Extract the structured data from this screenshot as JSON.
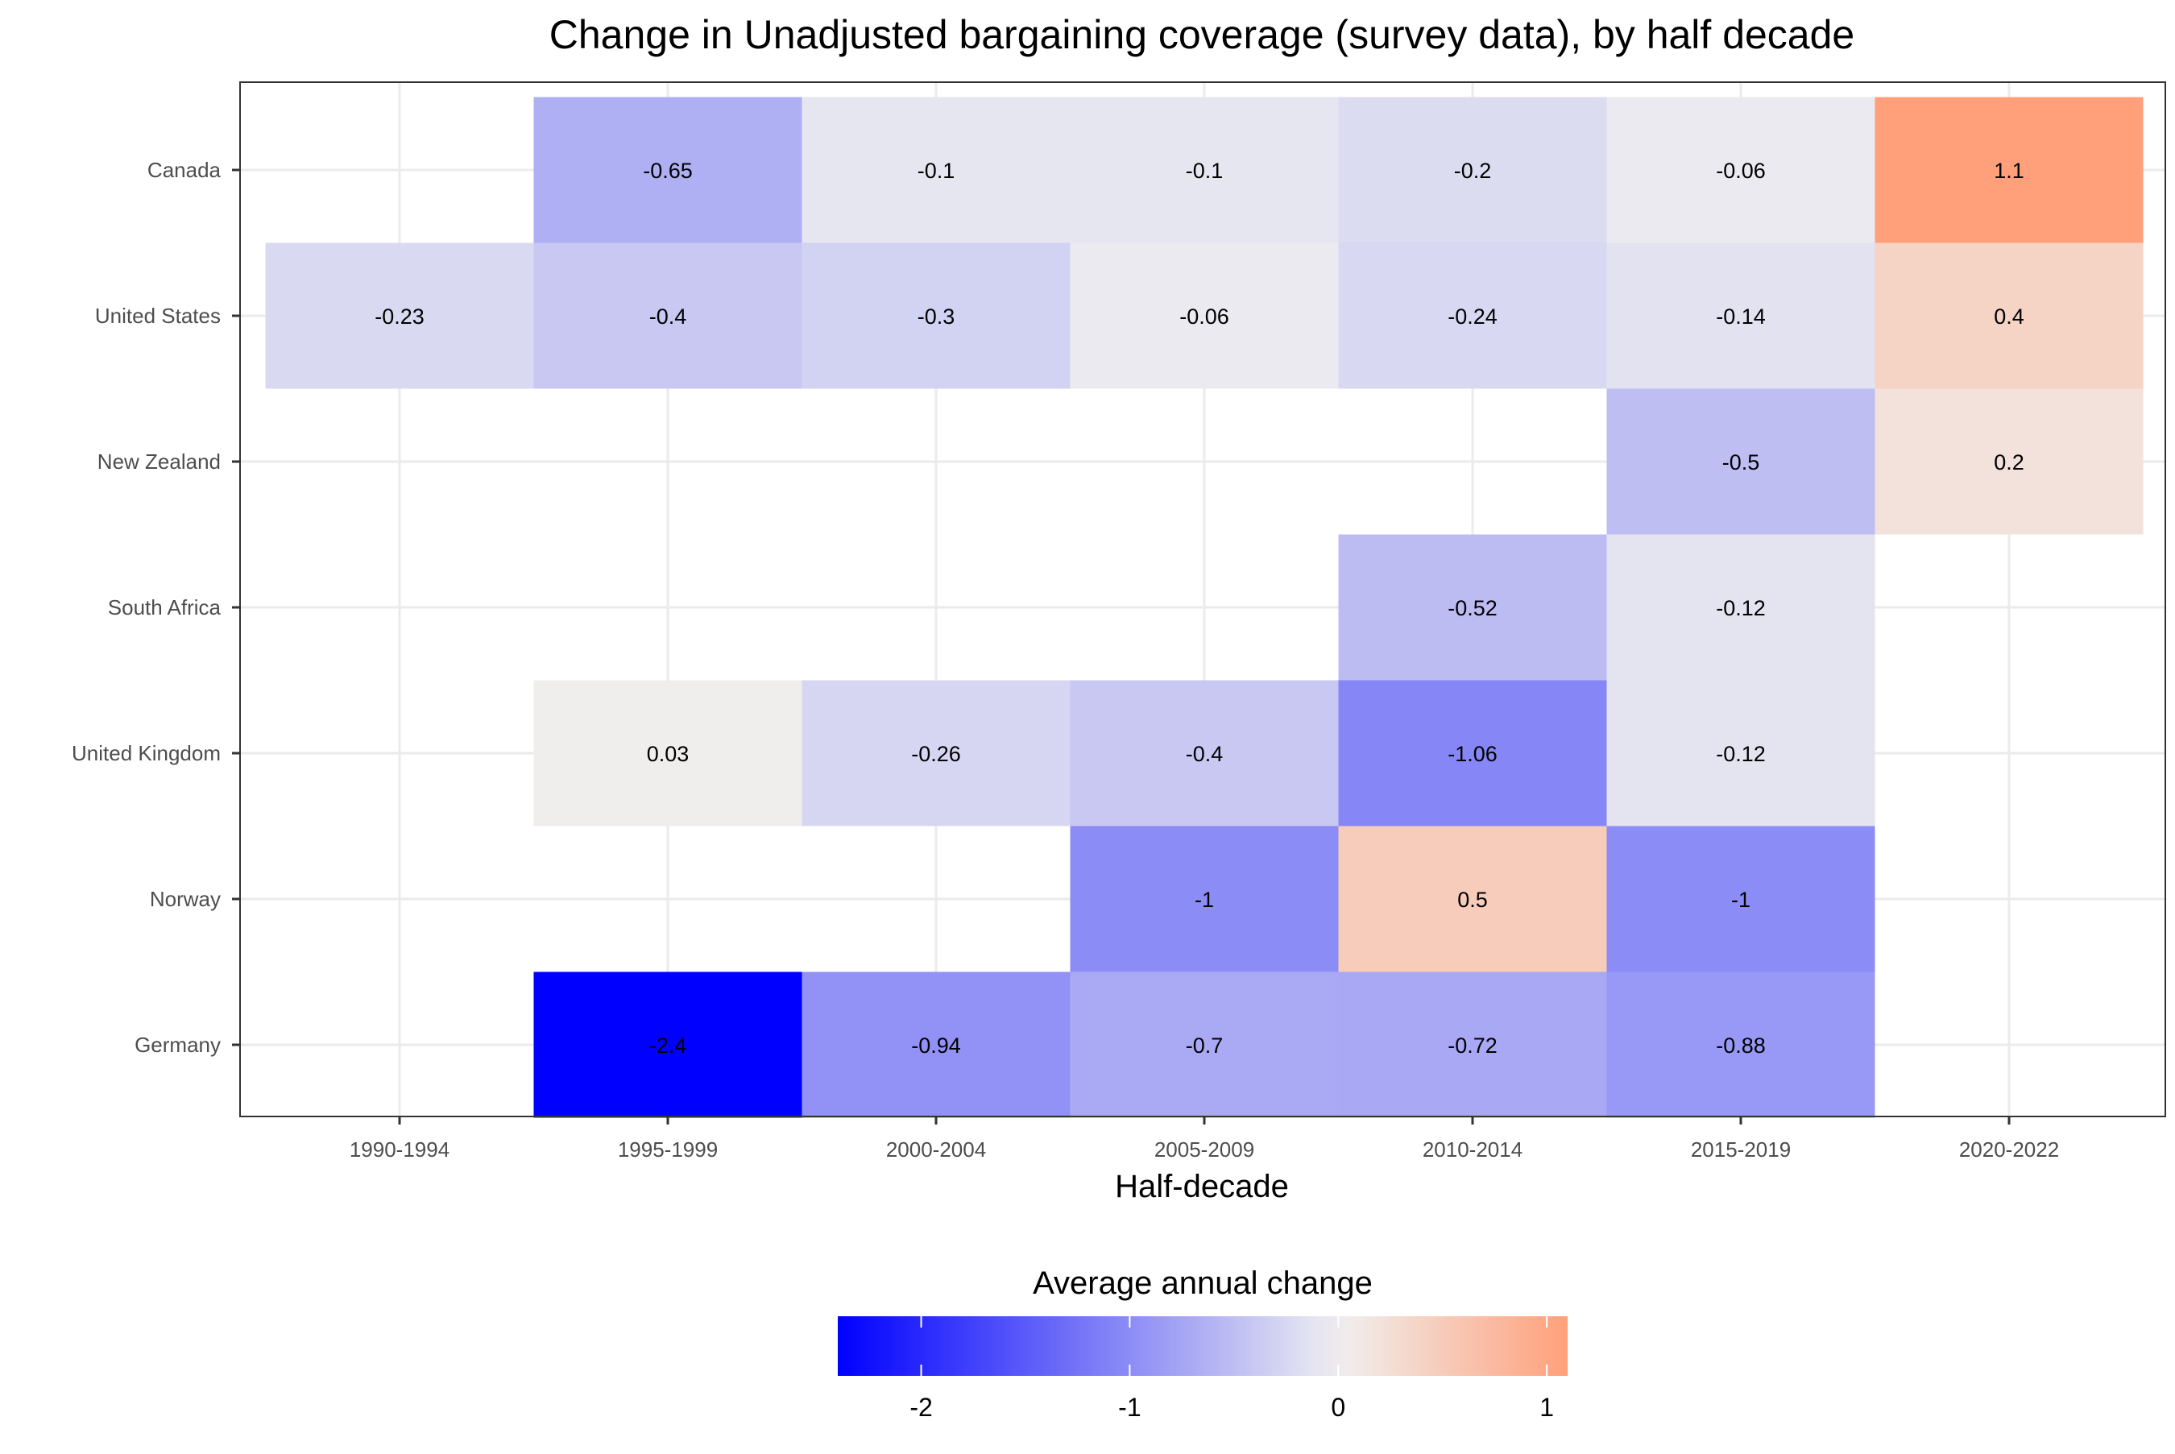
{
  "chart_data": {
    "type": "heatmap",
    "title": "Change in Unadjusted bargaining coverage (survey data), by half decade",
    "xlabel": "Half-decade",
    "ylabel": "",
    "x_categories": [
      "1990-1994",
      "1995-1999",
      "2000-2004",
      "2005-2009",
      "2010-2014",
      "2015-2019",
      "2020-2022"
    ],
    "y_categories": [
      "Canada",
      "United States",
      "New Zealand",
      "South Africa",
      "United Kingdom",
      "Norway",
      "Germany"
    ],
    "cells": [
      {
        "row": "Canada",
        "col": "1995-1999",
        "value": -0.65,
        "label": "-0.65"
      },
      {
        "row": "Canada",
        "col": "2000-2004",
        "value": -0.1,
        "label": "-0.1"
      },
      {
        "row": "Canada",
        "col": "2005-2009",
        "value": -0.1,
        "label": "-0.1"
      },
      {
        "row": "Canada",
        "col": "2010-2014",
        "value": -0.2,
        "label": "-0.2"
      },
      {
        "row": "Canada",
        "col": "2015-2019",
        "value": -0.06,
        "label": "-0.06"
      },
      {
        "row": "Canada",
        "col": "2020-2022",
        "value": 1.1,
        "label": "1.1"
      },
      {
        "row": "United States",
        "col": "1990-1994",
        "value": -0.23,
        "label": "-0.23"
      },
      {
        "row": "United States",
        "col": "1995-1999",
        "value": -0.4,
        "label": "-0.4"
      },
      {
        "row": "United States",
        "col": "2000-2004",
        "value": -0.3,
        "label": "-0.3"
      },
      {
        "row": "United States",
        "col": "2005-2009",
        "value": -0.06,
        "label": "-0.06"
      },
      {
        "row": "United States",
        "col": "2010-2014",
        "value": -0.24,
        "label": "-0.24"
      },
      {
        "row": "United States",
        "col": "2015-2019",
        "value": -0.14,
        "label": "-0.14"
      },
      {
        "row": "United States",
        "col": "2020-2022",
        "value": 0.4,
        "label": "0.4"
      },
      {
        "row": "New Zealand",
        "col": "2015-2019",
        "value": -0.5,
        "label": "-0.5"
      },
      {
        "row": "New Zealand",
        "col": "2020-2022",
        "value": 0.2,
        "label": "0.2"
      },
      {
        "row": "South Africa",
        "col": "2010-2014",
        "value": -0.52,
        "label": "-0.52"
      },
      {
        "row": "South Africa",
        "col": "2015-2019",
        "value": -0.12,
        "label": "-0.12"
      },
      {
        "row": "United Kingdom",
        "col": "1995-1999",
        "value": 0.03,
        "label": "0.03"
      },
      {
        "row": "United Kingdom",
        "col": "2000-2004",
        "value": -0.26,
        "label": "-0.26"
      },
      {
        "row": "United Kingdom",
        "col": "2005-2009",
        "value": -0.4,
        "label": "-0.4"
      },
      {
        "row": "United Kingdom",
        "col": "2010-2014",
        "value": -1.06,
        "label": "-1.06"
      },
      {
        "row": "United Kingdom",
        "col": "2015-2019",
        "value": -0.12,
        "label": "-0.12"
      },
      {
        "row": "Norway",
        "col": "2005-2009",
        "value": -1,
        "label": "-1"
      },
      {
        "row": "Norway",
        "col": "2010-2014",
        "value": 0.5,
        "label": "0.5"
      },
      {
        "row": "Norway",
        "col": "2015-2019",
        "value": -1,
        "label": "-1"
      },
      {
        "row": "Germany",
        "col": "1995-1999",
        "value": -2.4,
        "label": "-2.4"
      },
      {
        "row": "Germany",
        "col": "2000-2004",
        "value": -0.94,
        "label": "-0.94"
      },
      {
        "row": "Germany",
        "col": "2005-2009",
        "value": -0.7,
        "label": "-0.7"
      },
      {
        "row": "Germany",
        "col": "2010-2014",
        "value": -0.72,
        "label": "-0.72"
      },
      {
        "row": "Germany",
        "col": "2015-2019",
        "value": -0.88,
        "label": "-0.88"
      }
    ],
    "color_scale": {
      "low": "#0000ff",
      "mid": "#f0f0f0",
      "high": "#ffa07a",
      "midpoint": 0,
      "domain": [
        -2.4,
        1.1
      ]
    },
    "legend": {
      "title": "Average annual change",
      "position": "bottom",
      "ticks": [
        -2,
        -1,
        0,
        1
      ],
      "tick_labels": [
        "-2",
        "-1",
        "0",
        "1"
      ]
    },
    "grid": true,
    "cell_label_color": "#000000"
  }
}
